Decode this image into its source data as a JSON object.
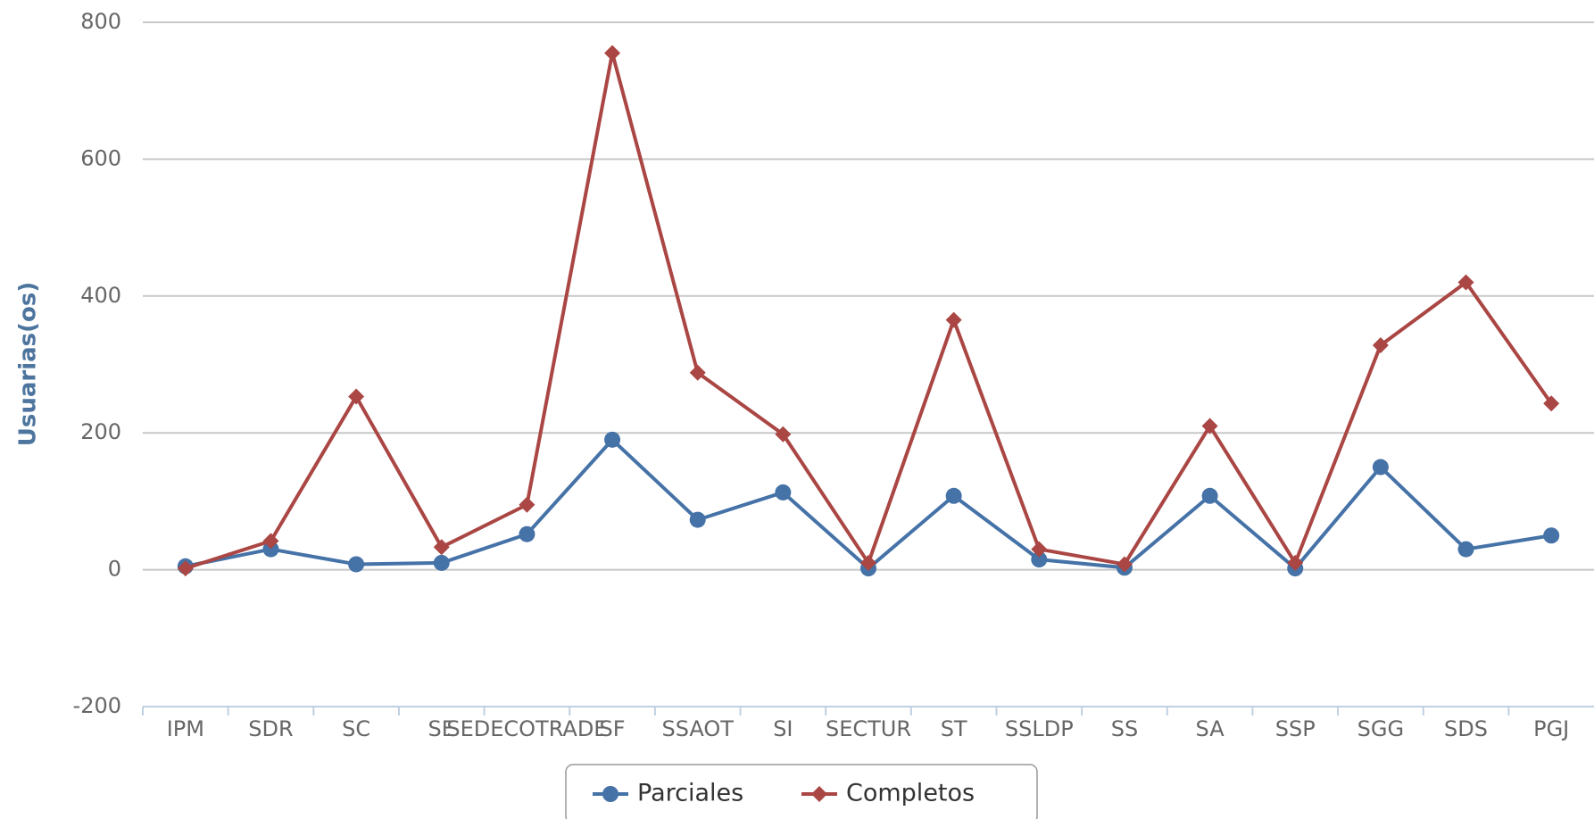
{
  "chart_data": {
    "type": "line",
    "y_label": "Usuarias(os)",
    "categories": [
      "IPM",
      "SDR",
      "SC",
      "SE",
      "SEDECOTRADE",
      "SF",
      "SSAOT",
      "SI",
      "SECTUR",
      "ST",
      "SSLDP",
      "SS",
      "SA",
      "SSP",
      "SGG",
      "SDS",
      "PGJ"
    ],
    "series": [
      {
        "name": "Parciales",
        "color": "#4572A7",
        "marker": "circle",
        "values": [
          5,
          30,
          8,
          10,
          52,
          190,
          73,
          113,
          2,
          108,
          15,
          3,
          108,
          2,
          150,
          30,
          50
        ]
      },
      {
        "name": "Completos",
        "color": "#AA4643",
        "marker": "diamond",
        "values": [
          2,
          42,
          253,
          33,
          95,
          755,
          288,
          198,
          10,
          365,
          30,
          8,
          210,
          10,
          328,
          420,
          243
        ]
      }
    ],
    "ylim": [
      -200,
      800
    ],
    "yticks": [
      -200,
      0,
      200,
      400,
      600,
      800
    ],
    "grid": true,
    "legend": "bottom"
  }
}
